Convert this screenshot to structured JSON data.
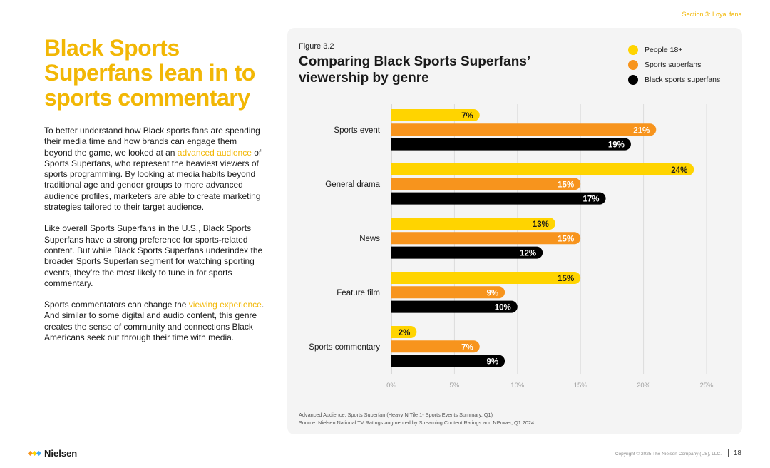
{
  "section_label": "Section 3: Loyal fans",
  "headline": "Black Sports Superfans lean in to sports commentary",
  "body": {
    "p1_a": "To better understand how Black sports fans are spending their media time and how brands can engage them beyond the game, we looked at an ",
    "p1_link": "advanced audience",
    "p1_b": " of Sports Superfans, who represent the heaviest viewers of sports programming. By looking at media habits beyond traditional age and gender groups to more advanced audience profiles, marketers are able to create marketing strategies tailored to their target audience.",
    "p2": "Like overall Sports Superfans in the U.S., Black Sports Superfans have a strong preference for sports-related content. But while Black Sports Superfans underindex the broader Sports Superfan segment for watching sporting events, they’re the most likely to tune in for sports commentary.",
    "p3_a": "Sports commentators can change the ",
    "p3_link": "viewing experience",
    "p3_b": ". And similar to some digital and audio content, this genre creates the sense of community and connections Black Americans seek out through their time with media."
  },
  "figure_label": "Figure 3.2",
  "colors": {
    "accent": "#f2b705",
    "people": "#ffd400",
    "sports": "#f7941d",
    "black": "#000000"
  },
  "chart_data": {
    "type": "bar",
    "orientation": "horizontal",
    "title": "Comparing Black Sports Superfans’ viewership by genre",
    "categories": [
      "Sports event",
      "General drama",
      "News",
      "Feature film",
      "Sports commentary"
    ],
    "series": [
      {
        "name": "People 18+",
        "color": "#ffd400",
        "values": [
          7,
          24,
          13,
          15,
          2
        ]
      },
      {
        "name": "Sports superfans",
        "color": "#f7941d",
        "values": [
          21,
          15,
          15,
          9,
          7
        ]
      },
      {
        "name": "Black sports superfans",
        "color": "#000000",
        "values": [
          19,
          17,
          12,
          10,
          9
        ]
      }
    ],
    "xticks": [
      "0%",
      "5%",
      "10%",
      "15%",
      "20%",
      "25%"
    ],
    "xlim": [
      0,
      25
    ],
    "grid": true,
    "legend_position": "top-right"
  },
  "footnote": {
    "line1": "Advanced Audience: Sports Superfan (Heavy N Tile 1- Sports Events Summary, Q1)",
    "line2": "Source: Nielsen National TV Ratings augmented by Streaming Content Ratings and NPower, Q1 2024"
  },
  "footer": {
    "logo_text": "Nielsen",
    "copyright": "Copyright © 2025 The Nielsen Company (US), LLC.",
    "page_number": "18"
  }
}
